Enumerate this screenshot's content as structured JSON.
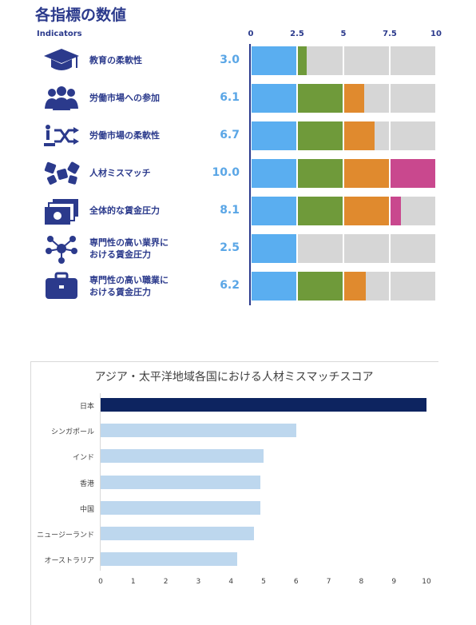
{
  "top_chart": {
    "title": "各指標の数値",
    "indicators_header": "Indicators",
    "axis_ticks": [
      "0",
      "2.5",
      "5",
      "7.5",
      "10"
    ],
    "segment_colors": [
      "#5aaef0",
      "#6f9a3a",
      "#e08a2e",
      "#c9488e"
    ],
    "empty_color": "#d6d6d6",
    "rows": [
      {
        "icon": "graduation-cap-icon",
        "label_lines": [
          "教育の柔軟性"
        ],
        "score": "3.0",
        "value": 3.0
      },
      {
        "icon": "people-group-icon",
        "label_lines": [
          "労働市場への参加"
        ],
        "score": "6.1",
        "value": 6.1
      },
      {
        "icon": "shuffle-person-icon",
        "label_lines": [
          "労働市場の柔軟性"
        ],
        "score": "6.7",
        "value": 6.7
      },
      {
        "icon": "puzzle-pieces-icon",
        "label_lines": [
          "人材ミスマッチ"
        ],
        "score": "10.0",
        "value": 10.0
      },
      {
        "icon": "money-bills-icon",
        "label_lines": [
          "全体的な賃金圧力"
        ],
        "score": "8.1",
        "value": 8.1
      },
      {
        "icon": "network-nodes-icon",
        "label_lines": [
          "専門性の高い業界に",
          "おける賃金圧力"
        ],
        "score": "2.5",
        "value": 2.5
      },
      {
        "icon": "briefcase-icon",
        "label_lines": [
          "専門性の高い職業に",
          "おける賃金圧力"
        ],
        "score": "6.2",
        "value": 6.2
      }
    ]
  },
  "chart_data": {
    "type": "bar",
    "orientation": "horizontal",
    "title": "アジア・太平洋地域各国における人材ミスマッチスコア",
    "categories": [
      "日本",
      "シンガポール",
      "インド",
      "香港",
      "中国",
      "ニュージーランド",
      "オーストラリア"
    ],
    "values": [
      10,
      6,
      5,
      4.9,
      4.9,
      4.7,
      4.2
    ],
    "highlight_color": "#0d2460",
    "bar_color": "#bdd7ee",
    "xlim": [
      0,
      10
    ],
    "x_ticks": [
      "0",
      "1",
      "2",
      "3",
      "4",
      "5",
      "6",
      "7",
      "8",
      "9",
      "10"
    ],
    "xlabel": "",
    "ylabel": ""
  }
}
